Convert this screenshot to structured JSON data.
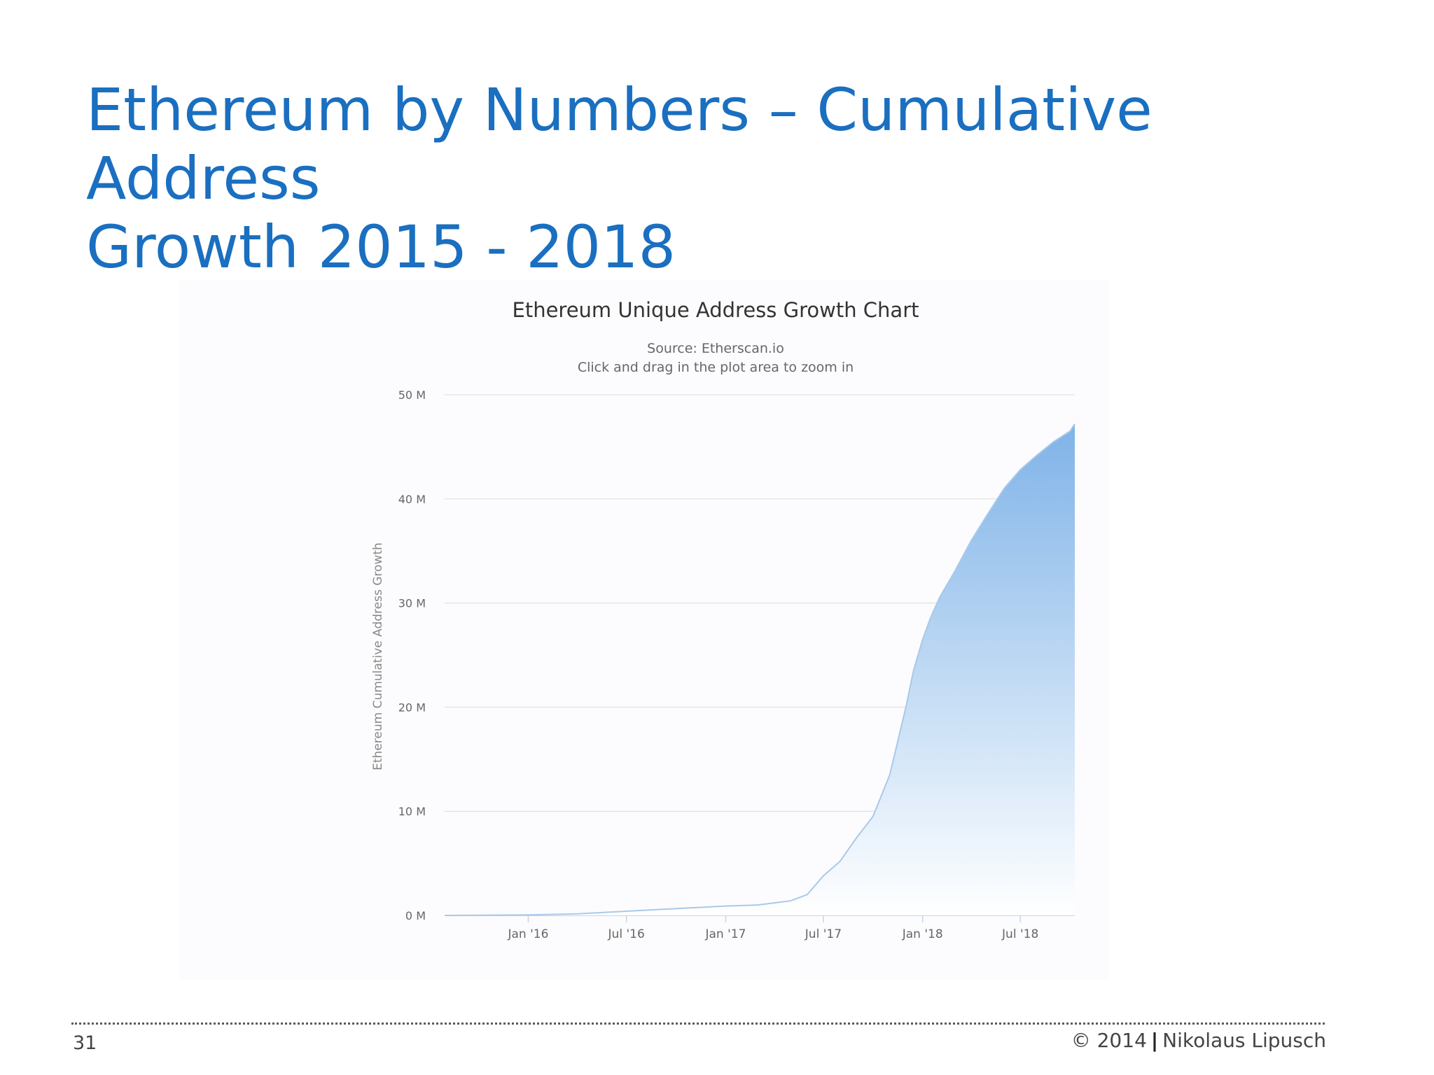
{
  "slide": {
    "title_line1": "Ethereum by Numbers – Cumulative Address",
    "title_line2": "Growth 2015 - 2018",
    "page_number": "31",
    "copyright_left": "© 2014",
    "copyright_right": "Nikolaus Lipusch"
  },
  "colors": {
    "title": "#1a6fc0",
    "area_top": "#7fb3e8",
    "area_bottom": "#ffffff",
    "line": "#a9c9ea",
    "grid": "#e6e6e6"
  },
  "chart_data": {
    "type": "area",
    "title": "Ethereum Unique Address Growth Chart",
    "subtitle_1": "Source: Etherscan.io",
    "subtitle_2": "Click and drag in the plot area to zoom in",
    "ylabel": "Ethereum Cumulative Address Growth",
    "xlabel": "",
    "xlim": [
      "2015-07-30",
      "2018-10-10"
    ],
    "ylim": [
      0,
      50
    ],
    "y_ticks": [
      0,
      10,
      20,
      30,
      40,
      50
    ],
    "y_tick_labels": [
      "0 M",
      "10 M",
      "20 M",
      "30 M",
      "40 M",
      "50 M"
    ],
    "x_ticks": [
      "2016-01-01",
      "2016-07-01",
      "2017-01-01",
      "2017-07-01",
      "2018-01-01",
      "2018-07-01"
    ],
    "x_tick_labels": [
      "Jan '16",
      "Jul '16",
      "Jan '17",
      "Jul '17",
      "Jan '18",
      "Jul '18"
    ],
    "grid": true,
    "legend": "none",
    "series": [
      {
        "x": [
          "2015-07-30",
          "2015-10-01",
          "2016-01-01",
          "2016-04-01",
          "2016-07-01",
          "2016-10-01",
          "2017-01-01",
          "2017-03-01",
          "2017-05-01",
          "2017-06-01",
          "2017-07-01",
          "2017-08-01",
          "2017-09-01",
          "2017-10-01",
          "2017-11-01",
          "2017-12-01",
          "2017-12-15",
          "2018-01-01",
          "2018-01-15",
          "2018-02-01",
          "2018-03-01",
          "2018-04-01",
          "2018-05-01",
          "2018-06-01",
          "2018-07-01",
          "2018-08-01",
          "2018-09-01",
          "2018-10-01",
          "2018-10-10"
        ],
        "values": [
          0.0,
          0.02,
          0.05,
          0.15,
          0.4,
          0.65,
          0.9,
          1.0,
          1.4,
          2.0,
          3.8,
          5.2,
          7.5,
          9.5,
          13.5,
          20.0,
          23.5,
          26.5,
          28.5,
          30.5,
          33.0,
          36.0,
          38.5,
          41.0,
          42.8,
          44.2,
          45.5,
          46.5,
          47.2
        ]
      }
    ]
  }
}
